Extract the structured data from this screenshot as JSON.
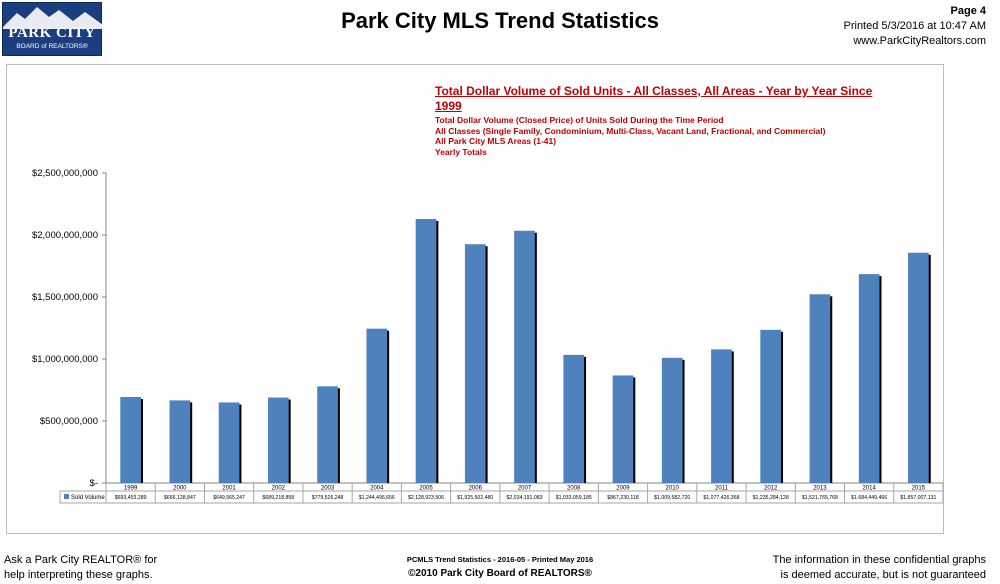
{
  "logo": {
    "line1": "PARK CITY",
    "line2": "BOARD of REALTORS®"
  },
  "header": {
    "title": "Park City MLS Trend Statistics",
    "page": "Page 4",
    "printed": "Printed  5/3/2016  at  10:47 AM",
    "website": "www.ParkCityRealtors.com"
  },
  "chart_data": {
    "type": "bar",
    "title": "Total Dollar Volume of Sold Units - All Classes, All Areas - Year by Year Since 1999",
    "subtitle_lines": [
      "Total Dollar Volume (Closed Price) of Units Sold During the Time Period",
      "All Classes  (Single Family, Condominium, Multi-Class, Vacant Land, Fractional, and Commercial)",
      "All Park City MLS Areas (1-41)",
      "Yearly Totals"
    ],
    "categories": [
      "1999",
      "2000",
      "2001",
      "2002",
      "2003",
      "2004",
      "2005",
      "2006",
      "2007",
      "2008",
      "2009",
      "2010",
      "2011",
      "2012",
      "2013",
      "2014",
      "2015"
    ],
    "series": [
      {
        "name": "Sold Volume",
        "values": [
          693453289,
          666128847,
          649565247,
          689218858,
          779526248,
          1244496656,
          2128923506,
          1925502480,
          2034191083,
          1033059185,
          867230118,
          1009582720,
          1077426368,
          1235284128,
          1521765768,
          1684449466,
          1857007131
        ],
        "labels": [
          "$693,453,289",
          "$666,128,847",
          "$649,565,247",
          "$689,218,858",
          "$779,526,248",
          "$1,244,496,656",
          "$2,128,923,506",
          "$1,925,502,480",
          "$2,034,191,083",
          "$1,033,059,185",
          "$867,230,118",
          "$1,009,582,720",
          "$1,077,426,368",
          "$1,235,284,128",
          "$1,521,765,768",
          "$1,684,449,466",
          "$1,857,007,131"
        ]
      }
    ],
    "ylim": [
      0,
      2500000000
    ],
    "y_ticks": [
      0,
      500000000,
      1000000000,
      1500000000,
      2000000000,
      2500000000
    ],
    "y_tick_labels": [
      "$-",
      "$500,000,000",
      "$1,000,000,000",
      "$1,500,000,000",
      "$2,000,000,000",
      "$2,500,000,000"
    ],
    "grid": false,
    "data_table": true,
    "colors": {
      "bar": "#4f81bd",
      "bar_shadow": "#000000"
    }
  },
  "footer": {
    "left_line1": "Ask a Park City REALTOR® for",
    "left_line2": "help interpreting these graphs.",
    "center_line1": "PCMLS Trend Statistics  -  2016-05 - Printed May 2016",
    "center_line2": "©2010  Park City Board of REALTORS®",
    "right_line1": "The information in these confidential graphs",
    "right_line2": "is deemed accurate, but is not guaranteed"
  }
}
